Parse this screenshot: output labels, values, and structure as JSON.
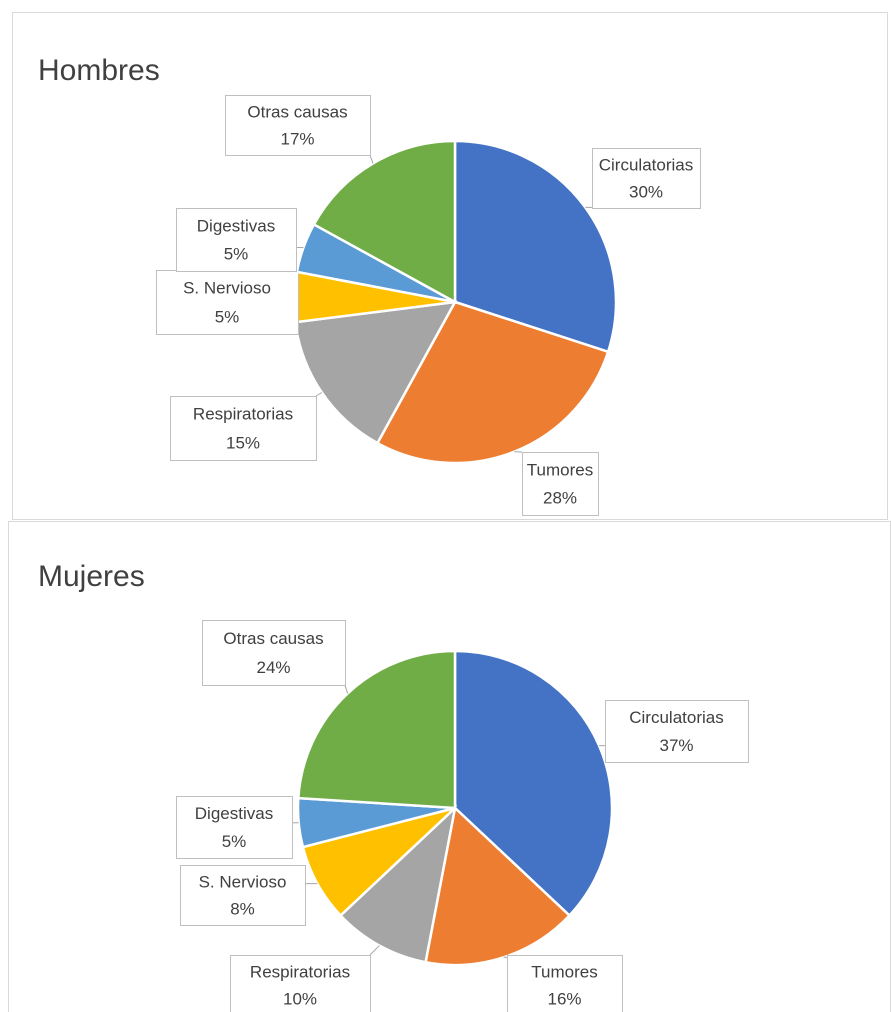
{
  "chart_data": [
    {
      "type": "pie",
      "title": "Hombres",
      "categories": [
        "Circulatorias",
        "Tumores",
        "Respiratorias",
        "S. Nervioso",
        "Digestivas",
        "Otras causas"
      ],
      "values": [
        30,
        28,
        15,
        5,
        5,
        17
      ],
      "value_labels": [
        "30%",
        "28%",
        "15%",
        "5%",
        "5%",
        "17%"
      ],
      "colors": [
        "#4472c4",
        "#ed7d31",
        "#a5a5a5",
        "#ffc000",
        "#5b9bd5",
        "#70ad47"
      ]
    },
    {
      "type": "pie",
      "title": "Mujeres",
      "categories": [
        "Circulatorias",
        "Tumores",
        "Respiratorias",
        "S. Nervioso",
        "Digestivas",
        "Otras causas"
      ],
      "values": [
        37,
        16,
        10,
        8,
        5,
        24
      ],
      "value_labels": [
        "37%",
        "16%",
        "10%",
        "8%",
        "5%",
        "24%"
      ],
      "colors": [
        "#4472c4",
        "#ed7d31",
        "#a5a5a5",
        "#ffc000",
        "#5b9bd5",
        "#70ad47"
      ]
    }
  ]
}
